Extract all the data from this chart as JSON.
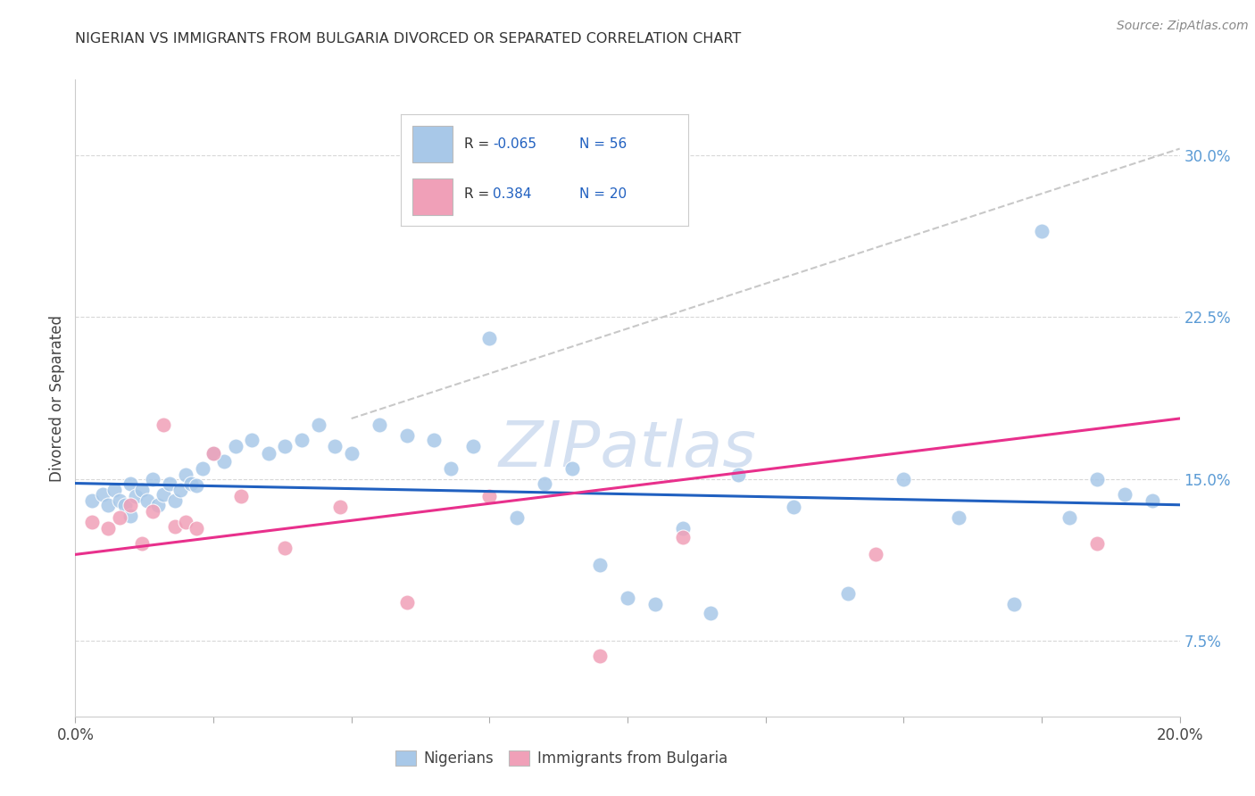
{
  "title": "NIGERIAN VS IMMIGRANTS FROM BULGARIA DIVORCED OR SEPARATED CORRELATION CHART",
  "source": "Source: ZipAtlas.com",
  "ylabel": "Divorced or Separated",
  "xlim": [
    0.0,
    0.2
  ],
  "ylim": [
    0.04,
    0.335
  ],
  "xticks": [
    0.0,
    0.025,
    0.05,
    0.075,
    0.1,
    0.125,
    0.15,
    0.175,
    0.2
  ],
  "xticklabels": [
    "0.0%",
    "",
    "",
    "",
    "",
    "",
    "",
    "",
    "20.0%"
  ],
  "yticks_right": [
    0.075,
    0.15,
    0.225,
    0.3
  ],
  "yticklabels_right": [
    "7.5%",
    "15.0%",
    "22.5%",
    "30.0%"
  ],
  "color_blue": "#A8C8E8",
  "color_pink": "#F0A0B8",
  "color_trend_blue": "#2060C0",
  "color_trend_pink": "#E8308C",
  "color_trend_gray": "#C8C8C8",
  "blue_scatter_x": [
    0.003,
    0.005,
    0.006,
    0.007,
    0.008,
    0.009,
    0.01,
    0.01,
    0.011,
    0.012,
    0.013,
    0.014,
    0.015,
    0.016,
    0.017,
    0.018,
    0.019,
    0.02,
    0.021,
    0.022,
    0.023,
    0.025,
    0.027,
    0.029,
    0.032,
    0.035,
    0.038,
    0.041,
    0.044,
    0.047,
    0.05,
    0.055,
    0.06,
    0.065,
    0.068,
    0.072,
    0.075,
    0.08,
    0.085,
    0.09,
    0.095,
    0.1,
    0.105,
    0.11,
    0.115,
    0.12,
    0.13,
    0.14,
    0.15,
    0.16,
    0.17,
    0.175,
    0.18,
    0.185,
    0.19,
    0.195
  ],
  "blue_scatter_y": [
    0.14,
    0.143,
    0.138,
    0.145,
    0.14,
    0.138,
    0.148,
    0.133,
    0.142,
    0.145,
    0.14,
    0.15,
    0.138,
    0.143,
    0.148,
    0.14,
    0.145,
    0.152,
    0.148,
    0.147,
    0.155,
    0.162,
    0.158,
    0.165,
    0.168,
    0.162,
    0.165,
    0.168,
    0.175,
    0.165,
    0.162,
    0.175,
    0.17,
    0.168,
    0.155,
    0.165,
    0.215,
    0.132,
    0.148,
    0.155,
    0.11,
    0.095,
    0.092,
    0.127,
    0.088,
    0.152,
    0.137,
    0.097,
    0.15,
    0.132,
    0.092,
    0.265,
    0.132,
    0.15,
    0.143,
    0.14
  ],
  "pink_scatter_x": [
    0.003,
    0.006,
    0.008,
    0.01,
    0.012,
    0.014,
    0.016,
    0.018,
    0.02,
    0.022,
    0.025,
    0.03,
    0.038,
    0.048,
    0.06,
    0.075,
    0.095,
    0.11,
    0.145,
    0.185
  ],
  "pink_scatter_y": [
    0.13,
    0.127,
    0.132,
    0.138,
    0.12,
    0.135,
    0.175,
    0.128,
    0.13,
    0.127,
    0.162,
    0.142,
    0.118,
    0.137,
    0.093,
    0.142,
    0.068,
    0.123,
    0.115,
    0.12
  ],
  "blue_trend_x": [
    0.0,
    0.2
  ],
  "blue_trend_y": [
    0.148,
    0.138
  ],
  "pink_trend_x": [
    0.0,
    0.2
  ],
  "pink_trend_y": [
    0.115,
    0.178
  ],
  "gray_trend_x": [
    0.05,
    0.2
  ],
  "gray_trend_y": [
    0.178,
    0.303
  ],
  "background_color": "#FFFFFF",
  "grid_color": "#D8D8D8",
  "watermark": "ZIPatlas",
  "watermark_color": "#D0DDF0"
}
